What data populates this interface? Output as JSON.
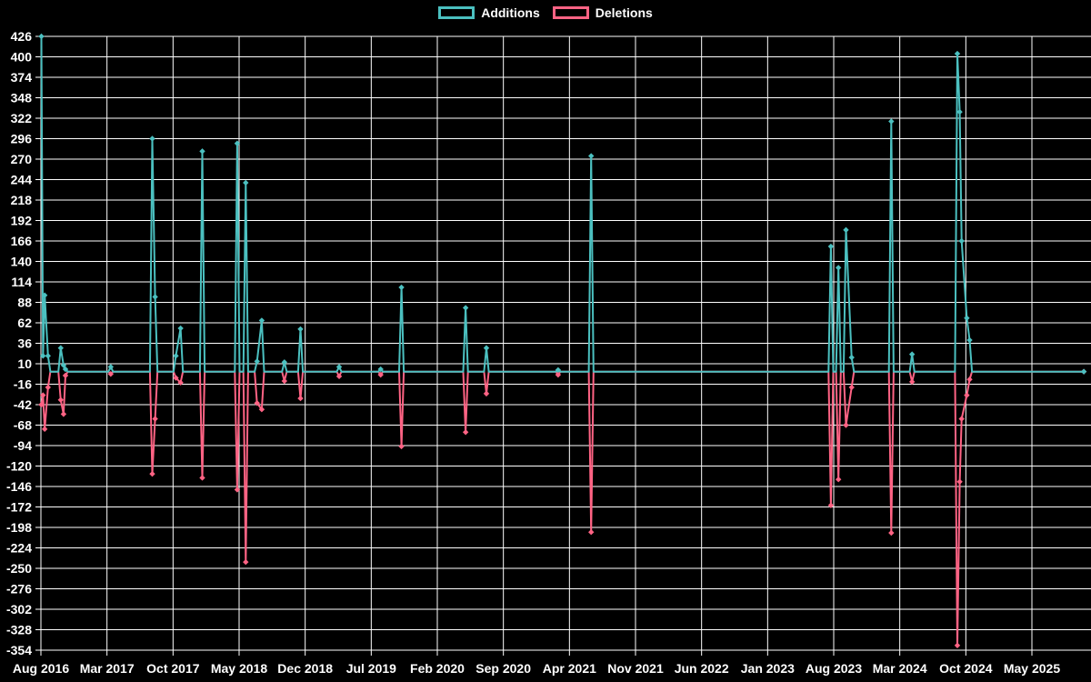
{
  "page": {
    "background": "#000000",
    "grid_color": "#ffffff",
    "text_color": "#ffffff"
  },
  "chart_data": {
    "type": "line",
    "title": "",
    "legend_position": "top",
    "grid": true,
    "x_axis": {
      "tick_labels": [
        "Aug 2016",
        "Mar 2017",
        "Oct 2017",
        "May 2018",
        "Dec 2018",
        "Jul 2019",
        "Feb 2020",
        "Sep 2020",
        "Apr 2021",
        "Nov 2021",
        "Jun 2022",
        "Jan 2023",
        "Aug 2023",
        "Mar 2024",
        "Oct 2024",
        "May 2025"
      ],
      "months_per_tick": 7,
      "x_unit": "months_since_Aug_2016"
    },
    "y_axis": {
      "max": 426,
      "min": -354,
      "step": 26,
      "tick_labels": [
        426,
        400,
        374,
        348,
        322,
        296,
        270,
        244,
        218,
        192,
        166,
        140,
        114,
        88,
        62,
        36,
        10,
        -16,
        -42,
        -68,
        -94,
        -120,
        -146,
        -172,
        -198,
        -224,
        -250,
        -276,
        -302,
        -328,
        -354
      ]
    },
    "series": [
      {
        "name": "Additions",
        "color": "#4BC0C0",
        "points": [
          [
            0.05,
            426
          ],
          [
            0.22,
            20
          ],
          [
            0.4,
            97
          ],
          [
            0.75,
            20
          ],
          [
            2.1,
            30
          ],
          [
            2.4,
            8
          ],
          [
            2.6,
            3
          ],
          [
            7.4,
            6
          ],
          [
            11.8,
            296
          ],
          [
            12.1,
            95
          ],
          [
            14.3,
            20
          ],
          [
            14.8,
            55
          ],
          [
            17.1,
            280
          ],
          [
            20.8,
            290
          ],
          [
            21.7,
            240
          ],
          [
            22.9,
            13
          ],
          [
            23.4,
            65
          ],
          [
            25.8,
            12
          ],
          [
            27.5,
            54
          ],
          [
            31.6,
            6
          ],
          [
            36.0,
            3
          ],
          [
            38.2,
            107
          ],
          [
            45.0,
            81
          ],
          [
            47.2,
            30
          ],
          [
            54.8,
            2
          ],
          [
            58.3,
            274
          ],
          [
            83.7,
            159
          ],
          [
            84.5,
            132
          ],
          [
            85.3,
            180
          ],
          [
            85.9,
            18
          ],
          [
            90.1,
            318
          ],
          [
            92.3,
            22
          ],
          [
            97.1,
            404
          ],
          [
            97.35,
            330
          ],
          [
            97.55,
            166
          ],
          [
            98.1,
            68
          ],
          [
            98.4,
            40
          ],
          [
            110.5,
            0
          ]
        ]
      },
      {
        "name": "Deletions",
        "color": "#FF6384",
        "points": [
          [
            0.05,
            -42
          ],
          [
            0.22,
            -30
          ],
          [
            0.4,
            -73
          ],
          [
            0.75,
            -20
          ],
          [
            2.1,
            -36
          ],
          [
            2.4,
            -54
          ],
          [
            2.6,
            -5
          ],
          [
            7.4,
            -3
          ],
          [
            11.8,
            -130
          ],
          [
            12.1,
            -60
          ],
          [
            14.3,
            -8
          ],
          [
            14.8,
            -14
          ],
          [
            17.1,
            -135
          ],
          [
            20.8,
            -150
          ],
          [
            21.7,
            -242
          ],
          [
            22.9,
            -40
          ],
          [
            23.4,
            -48
          ],
          [
            25.8,
            -12
          ],
          [
            27.5,
            -34
          ],
          [
            31.6,
            -6
          ],
          [
            36.0,
            -4
          ],
          [
            38.2,
            -95
          ],
          [
            45.0,
            -77
          ],
          [
            47.2,
            -28
          ],
          [
            54.8,
            -4
          ],
          [
            58.3,
            -204
          ],
          [
            83.7,
            -170
          ],
          [
            84.5,
            -137
          ],
          [
            85.3,
            -68
          ],
          [
            85.9,
            -20
          ],
          [
            90.1,
            -205
          ],
          [
            92.3,
            -13
          ],
          [
            97.1,
            -348
          ],
          [
            97.35,
            -140
          ],
          [
            97.55,
            -60
          ],
          [
            98.1,
            -30
          ],
          [
            98.4,
            -10
          ],
          [
            110.5,
            0
          ]
        ]
      }
    ]
  }
}
